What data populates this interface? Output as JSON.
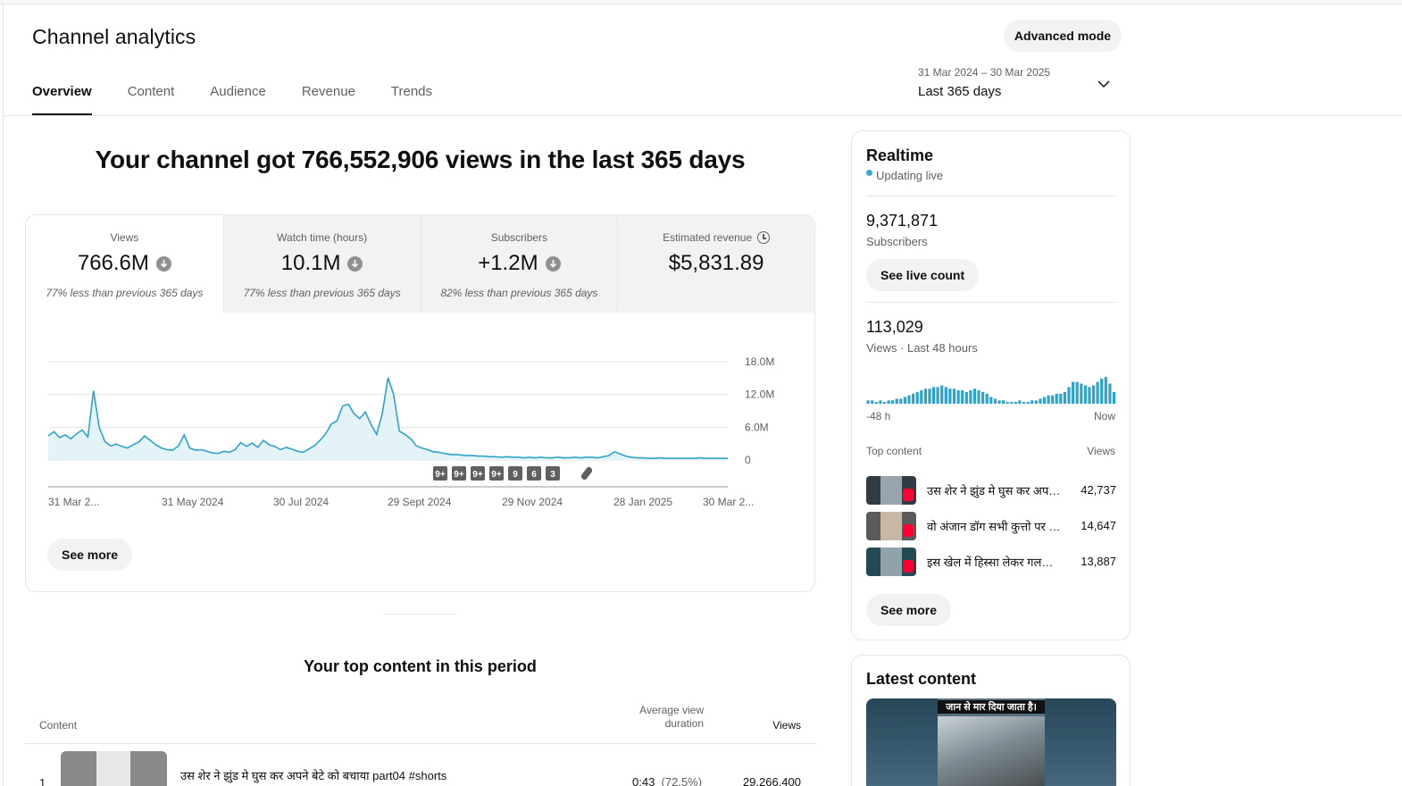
{
  "header": {
    "title": "Channel analytics",
    "advanced_mode_label": "Advanced mode",
    "tabs": [
      {
        "label": "Overview",
        "active": true
      },
      {
        "label": "Content",
        "active": false
      },
      {
        "label": "Audience",
        "active": false
      },
      {
        "label": "Revenue",
        "active": false
      },
      {
        "label": "Trends",
        "active": false
      }
    ],
    "date_range": {
      "dates": "31 Mar 2024 – 30 Mar 2025",
      "label": "Last 365 days"
    }
  },
  "headline": "Your channel got 766,552,906 views in the last 365 days",
  "metrics": [
    {
      "label": "Views",
      "value": "766.6M",
      "note": "77% less than previous 365 days",
      "icon": "arrow-down-icon"
    },
    {
      "label": "Watch time (hours)",
      "value": "10.1M",
      "note": "77% less than previous 365 days",
      "icon": "arrow-down-icon"
    },
    {
      "label": "Subscribers",
      "value": "+1.2M",
      "note": "82% less than previous 365 days",
      "icon": "arrow-down-icon"
    },
    {
      "label": "Estimated revenue",
      "value": "$5,831.89",
      "note": "",
      "icon": "clock-icon"
    }
  ],
  "chart_data": {
    "type": "area",
    "title": "",
    "xlabel": "",
    "ylabel": "",
    "x_tick_labels": [
      "31 Mar 2...",
      "31 May 2024",
      "30 Jul 2024",
      "29 Sept 2024",
      "29 Nov 2024",
      "28 Jan 2025",
      "30 Mar 2..."
    ],
    "y_tick_labels": [
      "0",
      "6.0M",
      "12.0M",
      "18.0M"
    ],
    "ylim": [
      0,
      18000000
    ],
    "grid": true,
    "color": "#2ea3c9",
    "series": [
      {
        "values": [
          4.4,
          5.2,
          4.1,
          4.6,
          3.9,
          4.8,
          5.5,
          4.2,
          12.7,
          6.0,
          3.4,
          2.6,
          2.9,
          2.5,
          2.2,
          2.8,
          3.3,
          4.4,
          3.6,
          2.8,
          2.2,
          1.9,
          1.8,
          2.6,
          4.6,
          2.2,
          1.8,
          1.9,
          1.6,
          1.3,
          1.2,
          1.6,
          1.4,
          1.9,
          3.2,
          2.5,
          3.1,
          2.3,
          3.6,
          2.8,
          2.5,
          1.9,
          2.3,
          2.0,
          1.6,
          1.4,
          2.0,
          2.6,
          3.6,
          4.8,
          6.6,
          7.2,
          9.9,
          10.2,
          8.5,
          7.6,
          8.8,
          6.5,
          4.7,
          8.6,
          15.1,
          12.0,
          5.3,
          4.7,
          3.9,
          2.6,
          2.2,
          1.9,
          1.5,
          1.4,
          1.2,
          1.0,
          1.0,
          0.9,
          0.8,
          0.8,
          0.7,
          0.7,
          0.6,
          0.6,
          0.5,
          0.6,
          0.5,
          0.5,
          0.4,
          0.5,
          0.4,
          0.5,
          0.4,
          0.4,
          0.5,
          0.4,
          0.4,
          0.5,
          0.4,
          0.5,
          0.5,
          0.4,
          0.6,
          0.8,
          1.5,
          1.1,
          0.7,
          0.5,
          0.4,
          0.4,
          0.3,
          0.3,
          0.4,
          0.3,
          0.3,
          0.3,
          0.3,
          0.3,
          0.3,
          0.4,
          0.3,
          0.3,
          0.3,
          0.3,
          0.3
        ]
      }
    ],
    "markers": [
      "9+",
      "9+",
      "9+",
      "9+",
      "9",
      "6",
      "3"
    ],
    "marker_icon": "shorts-icon"
  },
  "overview_see_more_label": "See more",
  "top_content": {
    "title": "Your top content in this period",
    "columns": {
      "content": "Content",
      "avg_view_duration": "Average view duration",
      "views": "Views"
    },
    "rows": [
      {
        "rank": "1",
        "title": "उस शेर ने झुंड मे घुस कर अपने बेटे को बचाया part04 #shorts",
        "avg_view_duration": "0:43",
        "avg_pct": "(72.5%)",
        "views": "29,266,400"
      }
    ]
  },
  "realtime": {
    "title": "Realtime",
    "status": "Updating live",
    "subscribers_value": "9,371,871",
    "subscribers_label": "Subscribers",
    "see_live_count_label": "See live count",
    "views_value": "113,029",
    "views_label": "Views · Last 48 hours",
    "axis_start": "-48 h",
    "axis_end": "Now",
    "bars": [
      2,
      2,
      1,
      2,
      1,
      2,
      2,
      3,
      3,
      4,
      5,
      6,
      7,
      8,
      9,
      9,
      10,
      10,
      11,
      10,
      9,
      9,
      8,
      8,
      7,
      8,
      9,
      8,
      7,
      6,
      4,
      3,
      2,
      2,
      1,
      1,
      1,
      2,
      1,
      1,
      2,
      2,
      3,
      4,
      5,
      5,
      6,
      6,
      7,
      10,
      13,
      13,
      12,
      11,
      10,
      11,
      13,
      15,
      16,
      12,
      7
    ],
    "bar_color": "#2ea3c9",
    "top_content_label": "Top content",
    "views_col_label": "Views",
    "top_items": [
      {
        "title": "उस शेर ने झुंड मे घुस कर अपने बेटे को बचाया",
        "views": "42,737"
      },
      {
        "title": "वो अंजान डॉग सभी कुत्तो पर भारी",
        "views": "14,647"
      },
      {
        "title": "इस खेल में हिस्सा लेकर गलती कर दी",
        "views": "13,887"
      }
    ],
    "see_more_label": "See more"
  },
  "latest_content": {
    "title": "Latest content",
    "thumbnail_caption": "जान से मार दिया जाता है।"
  }
}
